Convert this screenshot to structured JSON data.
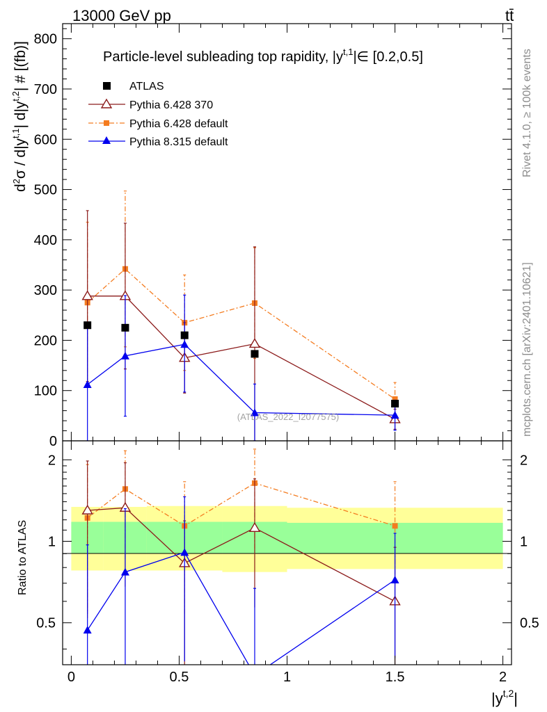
{
  "header": {
    "energy_label": "13000 GeV pp",
    "process_label": "tt̄"
  },
  "side_labels": {
    "rivet": "Rivet 4.1.0, ≥ 100k events",
    "mcplots": "mcplots.cern.ch [arXiv:2401.10621]"
  },
  "chart_data": [
    {
      "type": "scatter",
      "panel": "main",
      "title": "Particle-level subleading top rapidity, |y^{t,1}| ∈ [0.2,0.5]",
      "title_text": "Particle-level subleading top rapidity, |y",
      "title_sup": "t,1",
      "title_tail": "|∈ [0.2,0.5]",
      "ylabel": "d²σ / d|y^{t,1}| d|y^{t,2}| # [(fb)]",
      "ylabel_parts": {
        "a": "d",
        "b": "2",
        "c": "σ / d|y",
        "d": "t,1",
        "e": "| d|y",
        "f": "t,2",
        "g": "| # [(fb)]"
      },
      "watermark": "(ATLAS_2022_I2077575)",
      "xlim": [
        -0.04,
        2.04
      ],
      "ylim": [
        0,
        830
      ],
      "y_ticks": [
        0,
        100,
        200,
        300,
        400,
        500,
        600,
        700,
        800
      ],
      "y_tick_labels": [
        "0",
        "100",
        "200",
        "300",
        "400",
        "500",
        "600",
        "700",
        "800"
      ],
      "legend_position": "top-left",
      "series": [
        {
          "name": "ATLAS",
          "marker": "square",
          "color": "#000000",
          "x": [
            0.075,
            0.25,
            0.525,
            0.85,
            1.5
          ],
          "y": [
            230,
            225,
            210,
            173,
            74
          ]
        },
        {
          "name": "Pythia 6.428 370",
          "marker": "open-triangle",
          "color": "#8b1a1a",
          "x": [
            0.075,
            0.25,
            0.525,
            0.85,
            1.5
          ],
          "y": [
            288,
            288,
            165,
            193,
            43
          ],
          "yerr_lo": [
            170,
            145,
            70,
            193,
            20
          ],
          "yerr_hi": [
            170,
            145,
            70,
            193,
            20
          ]
        },
        {
          "name": "Pythia 6.428 default",
          "marker": "filled-square-small",
          "dashed": true,
          "color": "#f47c20",
          "x": [
            0.075,
            0.25,
            0.525,
            0.85,
            1.5
          ],
          "y": [
            275,
            342,
            235,
            274,
            83
          ],
          "yerr_lo": [
            160,
            155,
            95,
            110,
            33
          ],
          "yerr_hi": [
            160,
            155,
            95,
            110,
            33
          ]
        },
        {
          "name": "Pythia 8.315 default",
          "marker": "filled-triangle",
          "color": "#0000ee",
          "x": [
            0.075,
            0.25,
            0.525,
            0.85,
            1.5
          ],
          "y": [
            112,
            169,
            192,
            56,
            51
          ],
          "yerr_lo": [
            112,
            120,
            95,
            56,
            30
          ],
          "yerr_hi": [
            112,
            120,
            98,
            57,
            30
          ]
        }
      ]
    },
    {
      "type": "scatter",
      "panel": "ratio",
      "ylabel": "Ratio to ATLAS",
      "xlabel": "|y^{t,2}|",
      "xlabel_parts": {
        "a": "|y",
        "b": "t,2",
        "c": "|"
      },
      "xlim": [
        -0.04,
        2.04
      ],
      "ylim": [
        0.35,
        2.35
      ],
      "x_ticks": [
        0,
        0.5,
        1,
        1.5,
        2
      ],
      "x_tick_labels": [
        "0",
        "0.5",
        "1",
        "1.5",
        "2"
      ],
      "y_ticks": [
        0.5,
        1,
        2
      ],
      "y_tick_labels": [
        "0.5",
        "1",
        "2"
      ],
      "bands": {
        "x_edges": [
          0,
          0.15,
          0.35,
          0.7,
          1.0,
          2.0
        ],
        "yellow_lo": [
          0.78,
          0.78,
          0.78,
          0.77,
          0.79
        ],
        "yellow_hi": [
          1.34,
          1.34,
          1.35,
          1.35,
          1.33
        ],
        "green_lo": [
          0.9,
          0.9,
          0.9,
          0.9,
          0.9
        ],
        "green_hi": [
          1.18,
          1.18,
          1.18,
          1.18,
          1.17
        ]
      },
      "series": [
        {
          "name": "Pythia 6.428 370",
          "color": "#8b1a1a",
          "x": [
            0.075,
            0.25,
            0.525,
            0.85,
            1.5
          ],
          "y": [
            1.3,
            1.33,
            0.83,
            1.12,
            0.6
          ],
          "yerr_lo": [
            0.76,
            0.65,
            0.48,
            0.55,
            0.35
          ],
          "yerr_hi": [
            0.68,
            0.62,
            0.36,
            0.58,
            0.35
          ]
        },
        {
          "name": "Pythia 6.428 default",
          "color": "#f47c20",
          "dashed": true,
          "x": [
            0.075,
            0.25,
            0.525,
            0.85,
            1.5
          ],
          "y": [
            1.22,
            1.56,
            1.14,
            1.64,
            1.14
          ],
          "yerr_lo": [
            0.7,
            0.7,
            0.6,
            0.7,
            0.45
          ],
          "yerr_hi": [
            0.7,
            0.6,
            0.52,
            0.55,
            0.52
          ]
        },
        {
          "name": "Pythia 8.315 default",
          "color": "#0000ee",
          "x": [
            0.075,
            0.25,
            0.525,
            0.85,
            1.5
          ],
          "y": [
            0.47,
            0.77,
            0.91,
            0.32,
            0.72
          ],
          "yerr_lo": [
            0.47,
            0.6,
            0.55,
            0.32,
            0.35
          ],
          "yerr_hi": [
            0.5,
            0.55,
            0.55,
            0.35,
            0.35
          ]
        }
      ]
    }
  ]
}
